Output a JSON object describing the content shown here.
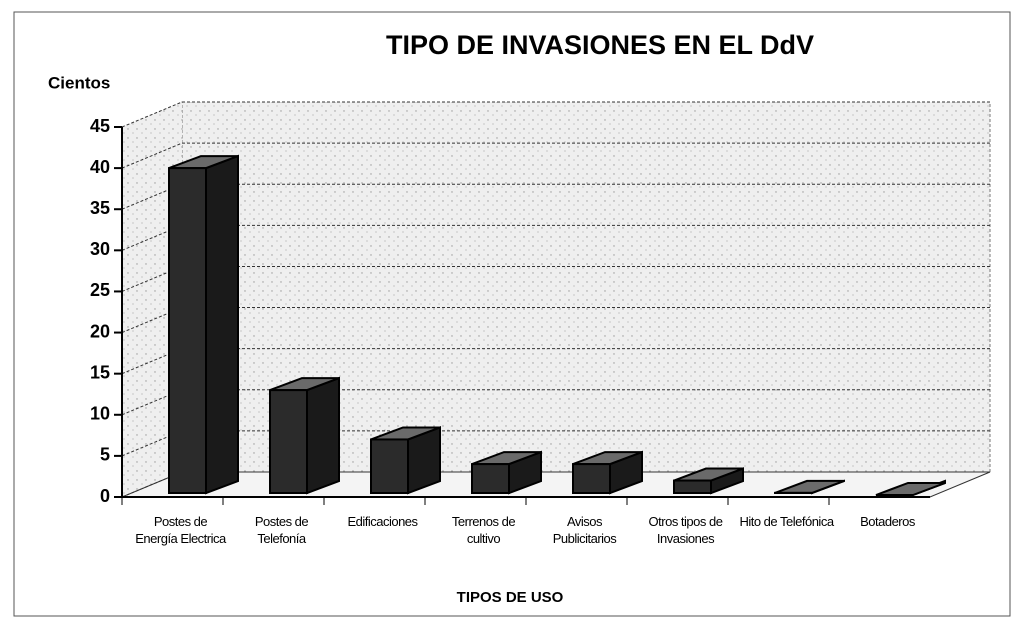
{
  "chart_data": {
    "type": "bar3d",
    "title": "TIPO DE INVASIONES EN EL DdV",
    "y_label": "Cientos",
    "x_label": "TIPOS DE USO",
    "categories": [
      "Postes de Energía Electrica",
      "Postes de Telefonía",
      "Edificaciones",
      "Terrenos de cultivo",
      "Avisos Publicitarios",
      "Otros tipos de Invasiones",
      "Hito de Telefónica",
      "Botaderos"
    ],
    "values": [
      40,
      13,
      7,
      4,
      4,
      2,
      0.5,
      0.2
    ],
    "color": "#2b2b2b",
    "ylim": [
      0,
      45
    ],
    "yticks": [
      0,
      5,
      10,
      15,
      20,
      25,
      30,
      35,
      40,
      45
    ],
    "grid": true
  }
}
